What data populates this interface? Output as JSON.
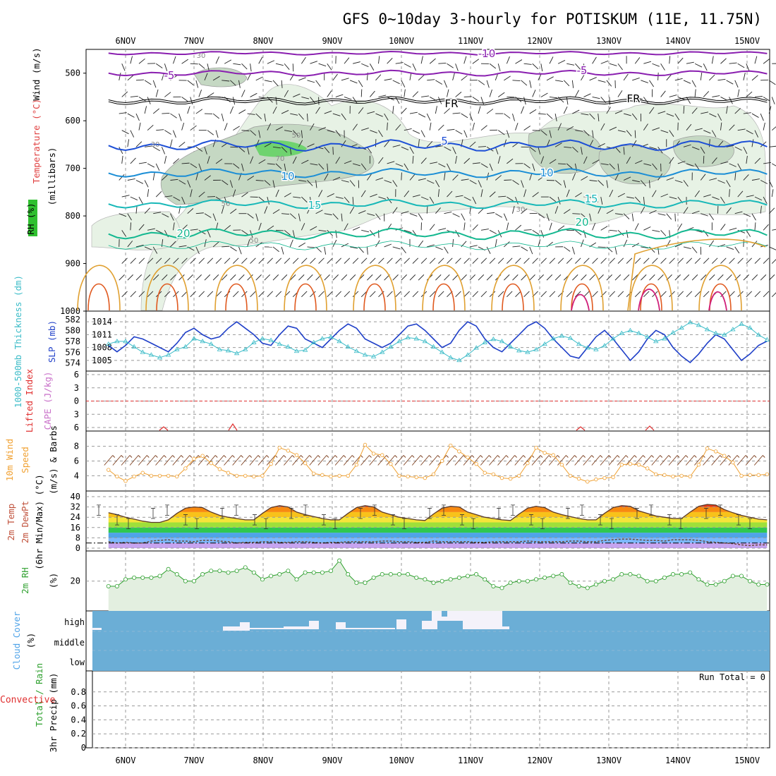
{
  "title": "GFS 0~10day 3-hourly for POTISKUM (11E, 11.75N)",
  "dates": [
    "6NOV",
    "7NOV",
    "8NOV",
    "9NOV",
    "10NOV",
    "11NOV",
    "12NOV",
    "13NOV",
    "14NOV",
    "15NOV"
  ],
  "colors": {
    "grid": "#999999",
    "rh_fill_light": "#e7f2e5",
    "rh_fill_mid": "#c5d8c3",
    "rh_fill_dark": "#9cb39c",
    "rh_fill_green": "#6fd36f",
    "cloud_blue": "#6baed6",
    "slp": "#1f3fc8",
    "thickness": "#3cbcc8",
    "wind_speed": "#f0a030",
    "rh2m": "#2ea02e",
    "lifted_red": "#e03030",
    "cape_purple": "#c86ec8"
  },
  "labels": {
    "upper_left": {
      "wind": "Wind (m/s)",
      "temperature": "Temperature (°C)",
      "rh": "RH (%)",
      "millibars": "(millibars)"
    },
    "slp_left": {
      "thickness": "1000-500mb Thickness (dm)",
      "slp": "SLP (mb)"
    },
    "cape_left": {
      "lifted": "Lifted Index",
      "cape": "CAPE (J/kg)"
    },
    "wind10_left": {
      "wind": "10m Wind",
      "speed": "Speed",
      "barbs": "(m/s) & Barbs"
    },
    "temp_left": {
      "temp": "2m Temp",
      "dewpt": "2m DewPt",
      "minmax": "(6hr Min/Max) (°C)"
    },
    "rh2m_left": {
      "rh": "2m RH",
      "unit": "(%)"
    },
    "cloud_left": {
      "cloud": "Cloud Cover",
      "unit": "(%)"
    },
    "precip_left": {
      "total": "Total / Rain",
      "conv": "Convective",
      "precip": "3hr Precip (mm)"
    },
    "run_total": "Run Total = 0"
  },
  "chart_data": [
    {
      "type": "contour",
      "title": "GFS 0~10day 3-hourly for POTISKUM (11E, 11.75N)",
      "ylabel": "millibars",
      "y_ticks": [
        500,
        600,
        700,
        800,
        900,
        1000
      ],
      "ylim": [
        450,
        1000
      ],
      "temperature_contour_labels": [
        "-10",
        "-5",
        "-5",
        "FR",
        "FR",
        "5",
        "10",
        "10",
        "15",
        "15",
        "20",
        "20"
      ],
      "rh_contour_labels": [
        "30",
        "50",
        "70",
        "50",
        "30",
        "30",
        "50"
      ]
    },
    {
      "type": "line",
      "series": [
        {
          "name": "SLP",
          "axis_ticks": [
            1005,
            1008,
            1011,
            1014
          ],
          "values": [
            1008.5,
            1007,
            1008.5,
            1010.5,
            1010,
            1009,
            1008,
            1007,
            1009,
            1011.5,
            1012.5,
            1011,
            1010,
            1010.5,
            1012.5,
            1014,
            1012.5,
            1011,
            1009,
            1008.5,
            1011,
            1013,
            1012.5,
            1010,
            1009,
            1008,
            1010,
            1012,
            1013.5,
            1012.5,
            1010,
            1009,
            1008,
            1009,
            1011,
            1013,
            1013.5,
            1012,
            1010,
            1008,
            1009,
            1012,
            1014,
            1013,
            1010,
            1008,
            1007,
            1009,
            1011,
            1013,
            1014,
            1012.5,
            1010,
            1008,
            1006,
            1005.5,
            1008,
            1010.5,
            1012,
            1010,
            1007.5,
            1005,
            1007,
            1010,
            1012,
            1011,
            1008,
            1006,
            1004.5,
            1006.5,
            1009,
            1011,
            1010,
            1007.5,
            1005,
            1006.5,
            1008.5,
            1009.5,
            1010.5
          ]
        },
        {
          "name": "1000-500mb Thickness",
          "axis_ticks": [
            574,
            576,
            578,
            580,
            582
          ],
          "values": [
            577.5,
            578,
            578,
            577,
            576,
            575.5,
            575,
            575.5,
            576.5,
            577,
            578.5,
            578,
            577.5,
            576.5,
            576.3,
            575.8,
            576.5,
            577.8,
            578.5,
            578.2,
            577.5,
            577,
            576.2,
            576.4,
            577.8,
            578.5,
            578.8,
            578,
            577,
            576.2,
            575.5,
            575.2,
            576,
            577,
            578,
            578.7,
            578.5,
            578,
            577,
            576,
            575,
            574.5,
            575.5,
            576.8,
            577.8,
            578.4,
            578,
            577,
            576.3,
            576,
            576.5,
            577.5,
            578.5,
            579,
            578.6,
            577.5,
            576.8,
            576.5,
            577.2,
            578.5,
            579.5,
            580,
            579.5,
            578.8,
            578,
            578.5,
            579.6,
            580.5,
            581.5,
            581,
            580.2,
            579.5,
            579.2,
            580.2,
            581.2,
            580.5,
            579.2,
            578.3,
            578
          ]
        }
      ]
    },
    {
      "type": "line",
      "series": [
        {
          "name": "Lifted Index",
          "axis_ticks": [
            -6,
            -3,
            0,
            3,
            6
          ],
          "reference_line": 0
        }
      ]
    },
    {
      "type": "line",
      "series": [
        {
          "name": "10m Wind Speed",
          "axis_ticks": [
            4,
            6,
            8
          ],
          "values": [
            4.8,
            3.9,
            3.3,
            3.9,
            4.4,
            4,
            4,
            4,
            3.9,
            5,
            6.3,
            6.7,
            5.7,
            4.9,
            4.4,
            4,
            4,
            3.9,
            4,
            5.6,
            7.8,
            7.4,
            6.8,
            5.7,
            4.3,
            4.1,
            3.9,
            4,
            4,
            5.5,
            8.2,
            7,
            6.8,
            5.6,
            4,
            3.9,
            3.8,
            3.7,
            4.2,
            6,
            8.1,
            7.3,
            6.5,
            5.6,
            4.4,
            4.2,
            3.7,
            3.6,
            4,
            5.7,
            7.8,
            7.1,
            6.8,
            5.5,
            4,
            3.6,
            3.2,
            3.5,
            3.7,
            3.8,
            5.5,
            5.6,
            5.5,
            5,
            4.2,
            4.1,
            3.9,
            4,
            3.9,
            5.5,
            7.7,
            7.3,
            6.7,
            5.8,
            4,
            4.1,
            4.1,
            4.2,
            4.4
          ]
        }
      ]
    },
    {
      "type": "line",
      "axis_ticks": [
        0,
        8,
        16,
        24,
        32,
        40
      ],
      "series": [
        {
          "name": "2m Temp",
          "values": [
            27.5,
            26,
            24,
            22.5,
            21,
            20,
            20,
            22,
            27,
            31,
            32,
            31.5,
            28,
            25.5,
            24,
            23,
            22,
            22,
            27,
            31.5,
            33,
            32,
            28,
            26,
            24.5,
            23,
            22,
            22,
            27,
            31.5,
            33,
            32,
            28,
            26,
            24,
            23,
            22,
            21.5,
            26.5,
            31,
            32.5,
            32,
            28,
            26,
            24,
            23,
            22,
            21.5,
            26.5,
            31,
            32.5,
            31.5,
            28,
            26,
            24.5,
            23,
            22,
            22,
            27,
            31.5,
            33,
            32.5,
            29,
            27,
            25,
            24,
            23,
            23,
            28,
            32.5,
            34,
            33.5,
            30,
            27.5,
            25.5,
            24,
            22.5,
            22,
            22
          ]
        },
        {
          "name": "2m DewPt",
          "values": [
            5,
            4,
            4.5,
            4,
            4,
            5.5,
            6,
            6.5,
            5.5,
            5.5,
            5,
            6,
            6,
            5.5,
            5,
            4,
            4.5,
            4.5,
            5,
            5,
            4.5,
            4.5,
            5,
            5,
            4.5,
            4,
            4.5,
            4.5,
            5,
            5,
            5,
            5,
            5.5,
            5.5,
            5,
            5,
            4.5,
            4.5,
            5.5,
            5,
            5,
            5,
            5,
            4.5,
            4.5,
            5,
            5,
            5,
            5,
            5.5,
            5,
            5,
            5,
            5,
            5.5,
            5.5,
            5,
            5,
            6,
            6.5,
            7,
            7,
            6.5,
            6,
            6,
            5.5,
            6.5,
            6.5,
            6.5,
            6,
            5,
            4.5,
            4,
            3.5,
            2.5,
            2,
            2.5,
            2.5,
            3.5
          ]
        }
      ]
    },
    {
      "type": "area",
      "series": [
        {
          "name": "2m RH",
          "axis_ticks": [
            20
          ],
          "values": [
            17,
            17,
            21,
            22,
            22,
            22,
            23,
            27,
            24,
            20,
            20,
            24,
            26,
            26,
            25,
            26,
            28,
            25,
            21,
            23,
            24,
            26,
            21,
            25,
            25,
            25,
            26,
            32,
            24,
            19,
            19,
            22,
            24,
            24,
            24,
            24,
            22,
            21,
            19,
            20,
            21,
            22,
            23,
            24,
            21,
            17,
            16,
            19,
            20,
            20,
            21,
            22,
            23,
            24,
            19,
            17,
            16,
            18,
            20,
            21,
            24,
            24,
            23,
            20,
            20,
            22,
            24,
            24,
            25,
            21,
            18,
            18,
            20,
            23,
            23,
            20,
            18,
            18,
            20,
            24
          ]
        }
      ]
    },
    {
      "type": "bar",
      "y_ticks": [
        "low",
        "middle",
        "high"
      ],
      "series": [
        {
          "name": "high cloud (%)",
          "values": [
            0.2,
            0,
            0,
            0,
            0,
            0,
            0,
            0,
            0,
            0,
            0,
            0,
            0,
            0,
            0,
            0,
            0,
            0,
            0,
            0,
            0,
            0,
            0,
            0,
            0,
            0,
            0,
            0,
            0,
            0,
            0,
            0,
            0,
            0,
            0,
            0,
            0,
            0,
            0,
            0,
            0,
            0,
            0,
            0,
            0,
            0,
            0,
            0,
            0,
            0,
            0,
            0,
            0,
            0,
            0,
            0,
            0,
            0,
            0,
            0,
            0,
            0,
            0,
            0,
            0,
            0,
            0,
            0,
            0,
            0,
            0,
            0,
            0,
            0,
            0,
            0,
            0,
            0,
            0
          ]
        }
      ]
    },
    {
      "type": "bar",
      "y_ticks": [
        0,
        0.2,
        0.4,
        0.6,
        0.8
      ],
      "ylim": [
        0,
        1
      ],
      "series": [
        {
          "name": "3hr Precip",
          "values": [
            0
          ]
        }
      ]
    }
  ]
}
